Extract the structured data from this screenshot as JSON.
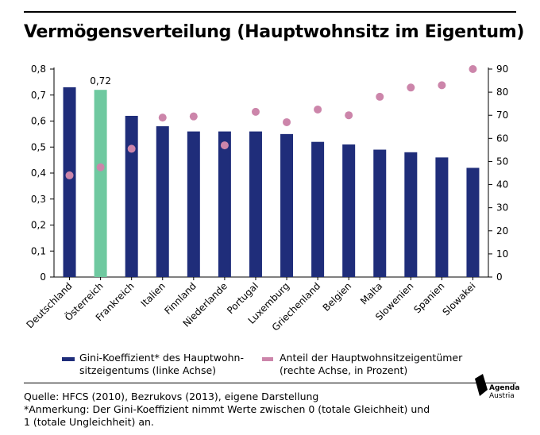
{
  "title": "Vermögensverteilung (Hauptwohnsitz im Eigentum)",
  "chart_data": {
    "type": "bar",
    "categories": [
      "Deutschland",
      "Österreich",
      "Frankreich",
      "Italien",
      "Finnland",
      "Niederlande",
      "Portugal",
      "Luxemburg",
      "Griechenland",
      "Belgien",
      "Malta",
      "Slowenien",
      "Spanien",
      "Slowakei"
    ],
    "series": [
      {
        "name": "Gini-Koeffizient* des Hauptwohnsitzeigentums (linke Achse)",
        "type": "bar",
        "axis": "left",
        "values": [
          0.73,
          0.72,
          0.62,
          0.58,
          0.56,
          0.56,
          0.56,
          0.55,
          0.52,
          0.51,
          0.49,
          0.48,
          0.46,
          0.42
        ]
      },
      {
        "name": "Anteil der Hauptwohnsitzeigentümer (rechte Achse, in Prozent)",
        "type": "scatter",
        "axis": "right",
        "values": [
          44,
          47.5,
          55.5,
          69,
          69.5,
          57,
          71.5,
          67,
          72.5,
          70,
          78,
          82,
          83,
          90
        ]
      }
    ],
    "highlight_index": 1,
    "highlight_label": "0,72",
    "left_axis": {
      "min": 0,
      "max": 0.8,
      "ticks": [
        "0",
        "0,1",
        "0,2",
        "0,3",
        "0,4",
        "0,5",
        "0,6",
        "0,7",
        "0,8"
      ]
    },
    "right_axis": {
      "min": 0,
      "max": 90,
      "ticks": [
        "0",
        "10",
        "20",
        "30",
        "40",
        "50",
        "60",
        "70",
        "80",
        "90"
      ]
    },
    "grid": false
  },
  "legend": {
    "bar_label_line1": "Gini-Koeffizient* des Hauptwohn-",
    "bar_label_line2": "sitzeigentums (linke Achse)",
    "dot_label_line1": "Anteil der Hauptwohnsitzeigentümer",
    "dot_label_line2": "(rechte Achse, in Prozent)"
  },
  "notes": {
    "source": "Quelle: HFCS (2010), Bezrukovs (2013), eigene Darstellung",
    "remark_line1": "*Anmerkung: Der Gini-Koeffizient nimmt Werte zwischen 0 (totale Gleichheit) und",
    "remark_line2": "1 (totale Ungleichheit) an."
  },
  "logo": {
    "line1": "Agenda",
    "line2": "Austria"
  },
  "colors": {
    "bar": "#1f2d7a",
    "highlight": "#6fc9a0",
    "dot": "#cc85aa",
    "axis": "#000000"
  }
}
